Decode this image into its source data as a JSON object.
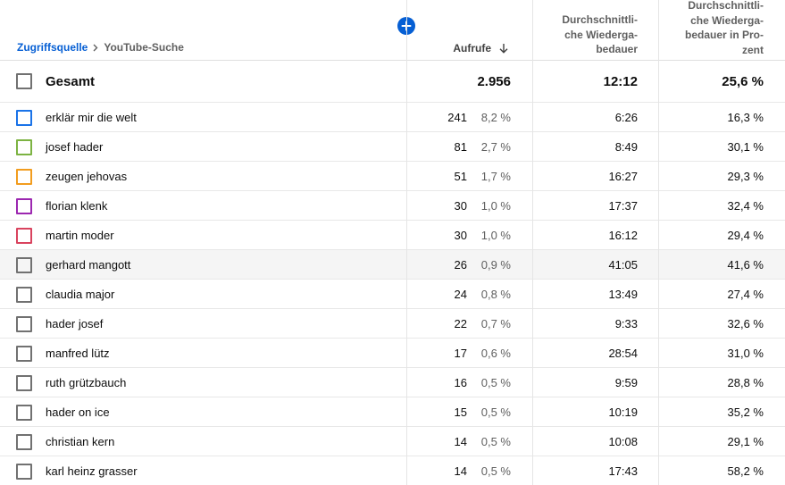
{
  "breadcrumb": {
    "link": "Zugriffsquelle",
    "current": "YouTube-Suche"
  },
  "columns": {
    "views": "Aufrufe",
    "avg_duration": "Durchschnittli-\nche Wiederga-\nbedauer",
    "avg_percent": "Durchschnittli-\nche Wiederga-\nbedauer in Pro-\nzent"
  },
  "colors": {
    "accent": "#065fd4"
  },
  "total": {
    "label": "Gesamt",
    "views": "2.956",
    "avg_duration": "12:12",
    "avg_percent": "25,6 %"
  },
  "rows": [
    {
      "term": "erklär mir die welt",
      "views": "241",
      "share": "8,2 %",
      "avg_duration": "6:26",
      "avg_percent": "16,3 %",
      "color": "#1a73e8"
    },
    {
      "term": "josef hader",
      "views": "81",
      "share": "2,7 %",
      "avg_duration": "8:49",
      "avg_percent": "30,1 %",
      "color": "#7cb342"
    },
    {
      "term": "zeugen jehovas",
      "views": "51",
      "share": "1,7 %",
      "avg_duration": "16:27",
      "avg_percent": "29,3 %",
      "color": "#f29d1f"
    },
    {
      "term": "florian klenk",
      "views": "30",
      "share": "1,0 %",
      "avg_duration": "17:37",
      "avg_percent": "32,4 %",
      "color": "#9c27b0"
    },
    {
      "term": "martin moder",
      "views": "30",
      "share": "1,0 %",
      "avg_duration": "16:12",
      "avg_percent": "29,4 %",
      "color": "#d9435e"
    },
    {
      "term": "gerhard mangott",
      "views": "26",
      "share": "0,9 %",
      "avg_duration": "41:05",
      "avg_percent": "41,6 %",
      "color": ""
    },
    {
      "term": "claudia major",
      "views": "24",
      "share": "0,8 %",
      "avg_duration": "13:49",
      "avg_percent": "27,4 %",
      "color": ""
    },
    {
      "term": "hader josef",
      "views": "22",
      "share": "0,7 %",
      "avg_duration": "9:33",
      "avg_percent": "32,6 %",
      "color": ""
    },
    {
      "term": "manfred lütz",
      "views": "17",
      "share": "0,6 %",
      "avg_duration": "28:54",
      "avg_percent": "31,0 %",
      "color": ""
    },
    {
      "term": "ruth grützbauch",
      "views": "16",
      "share": "0,5 %",
      "avg_duration": "9:59",
      "avg_percent": "28,8 %",
      "color": ""
    },
    {
      "term": "hader on ice",
      "views": "15",
      "share": "0,5 %",
      "avg_duration": "10:19",
      "avg_percent": "35,2 %",
      "color": ""
    },
    {
      "term": "christian kern",
      "views": "14",
      "share": "0,5 %",
      "avg_duration": "10:08",
      "avg_percent": "29,1 %",
      "color": ""
    },
    {
      "term": "karl heinz grasser",
      "views": "14",
      "share": "0,5 %",
      "avg_duration": "17:43",
      "avg_percent": "58,2 %",
      "color": ""
    }
  ]
}
